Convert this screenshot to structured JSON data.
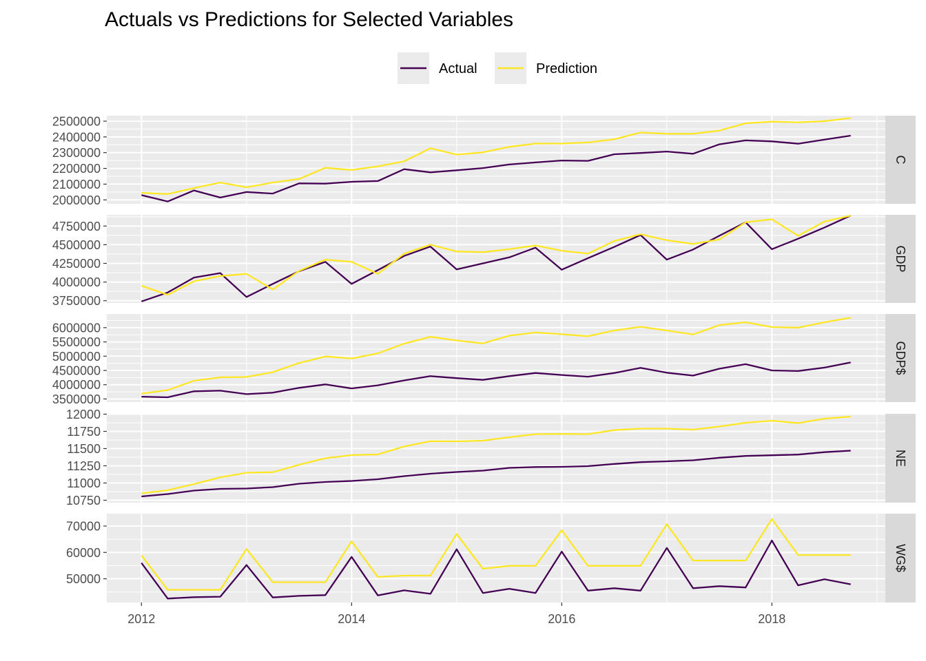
{
  "chart_data": {
    "type": "line",
    "title": "Actuals vs Predictions for Selected Variables",
    "xlabel": "",
    "ylabel": "",
    "x_ticks": [
      "2012",
      "2014",
      "2016",
      "2018"
    ],
    "x_tick_values": [
      2012,
      2014,
      2016,
      2018
    ],
    "x_range": [
      2011.67,
      2019.08
    ],
    "legend": {
      "position": "top",
      "entries": [
        {
          "name": "Actual",
          "color": "#440154"
        },
        {
          "name": "Prediction",
          "color": "#FDE725"
        }
      ]
    },
    "grid": true,
    "x": [
      2012.0,
      2012.25,
      2012.5,
      2012.75,
      2013.0,
      2013.25,
      2013.5,
      2013.75,
      2014.0,
      2014.25,
      2014.5,
      2014.75,
      2015.0,
      2015.25,
      2015.5,
      2015.75,
      2016.0,
      2016.25,
      2016.5,
      2016.75,
      2017.0,
      2017.25,
      2017.5,
      2017.75,
      2018.0,
      2018.25,
      2018.5,
      2018.75
    ],
    "panels": [
      {
        "label": "C",
        "ylim": [
          1975000,
          2535000
        ],
        "y_ticks": [
          "2000000",
          "2100000",
          "2200000",
          "2300000",
          "2400000",
          "2500000"
        ],
        "y_tick_values": [
          2000000,
          2100000,
          2200000,
          2300000,
          2400000,
          2500000
        ],
        "series": [
          {
            "name": "Actual",
            "values": [
              2030000,
              1990000,
              2060000,
              2015000,
              2050000,
              2040000,
              2105000,
              2103000,
              2115000,
              2120000,
              2195000,
              2175000,
              2188000,
              2202000,
              2225000,
              2238000,
              2250000,
              2248000,
              2290000,
              2298000,
              2307000,
              2293000,
              2353000,
              2378000,
              2372000,
              2357000,
              2383000,
              2408000
            ]
          },
          {
            "name": "Prediction",
            "values": [
              2045000,
              2037000,
              2075000,
              2110000,
              2080000,
              2110000,
              2133000,
              2204000,
              2190000,
              2213000,
              2245000,
              2328000,
              2288000,
              2302000,
              2337000,
              2358000,
              2358000,
              2365000,
              2385000,
              2428000,
              2420000,
              2420000,
              2440000,
              2487000,
              2497000,
              2493000,
              2500000,
              2520000
            ]
          }
        ]
      },
      {
        "label": "GDP",
        "ylim": [
          3720000,
          4900000
        ],
        "y_ticks": [
          "3750000",
          "4000000",
          "4250000",
          "4500000",
          "4750000"
        ],
        "y_tick_values": [
          3750000,
          4000000,
          4250000,
          4500000,
          4750000
        ],
        "series": [
          {
            "name": "Actual",
            "values": [
              3740000,
              3860000,
              4060000,
              4120000,
              3800000,
              3975000,
              4145000,
              4270000,
              3975000,
              4160000,
              4350000,
              4475000,
              4170000,
              4250000,
              4330000,
              4460000,
              4165000,
              4320000,
              4470000,
              4630000,
              4300000,
              4435000,
              4620000,
              4800000,
              4440000,
              4580000,
              4730000,
              4890000
            ]
          },
          {
            "name": "Prediction",
            "values": [
              3950000,
              3830000,
              4010000,
              4080000,
              4110000,
              3900000,
              4150000,
              4300000,
              4270000,
              4110000,
              4380000,
              4500000,
              4410000,
              4400000,
              4440000,
              4490000,
              4420000,
              4380000,
              4550000,
              4640000,
              4560000,
              4510000,
              4570000,
              4800000,
              4840000,
              4620000,
              4810000,
              4890000
            ]
          }
        ]
      },
      {
        "label": "GDP$",
        "ylim": [
          3390000,
          6480000
        ],
        "y_ticks": [
          "3500000",
          "4000000",
          "4500000",
          "5000000",
          "5500000",
          "6000000"
        ],
        "y_tick_values": [
          3500000,
          4000000,
          4500000,
          5000000,
          5500000,
          6000000
        ],
        "series": [
          {
            "name": "Actual",
            "values": [
              3580000,
              3560000,
              3770000,
              3790000,
              3670000,
              3720000,
              3890000,
              4010000,
              3870000,
              3980000,
              4150000,
              4300000,
              4230000,
              4170000,
              4300000,
              4410000,
              4340000,
              4280000,
              4410000,
              4590000,
              4420000,
              4320000,
              4560000,
              4720000,
              4500000,
              4480000,
              4600000,
              4780000
            ]
          },
          {
            "name": "Prediction",
            "values": [
              3690000,
              3810000,
              4140000,
              4260000,
              4270000,
              4440000,
              4760000,
              4990000,
              4920000,
              5100000,
              5440000,
              5680000,
              5550000,
              5450000,
              5720000,
              5830000,
              5770000,
              5700000,
              5900000,
              6030000,
              5900000,
              5760000,
              6090000,
              6190000,
              6020000,
              6000000,
              6190000,
              6350000
            ]
          }
        ]
      },
      {
        "label": "NE",
        "ylim": [
          10715,
          12005
        ],
        "y_ticks": [
          "10750",
          "11000",
          "11250",
          "11500",
          "11750",
          "12000"
        ],
        "y_tick_values": [
          10750,
          11000,
          11250,
          11500,
          11750,
          12000
        ],
        "series": [
          {
            "name": "Actual",
            "values": [
              10805,
              10840,
              10890,
              10915,
              10920,
              10940,
              10990,
              11015,
              11030,
              11055,
              11100,
              11135,
              11160,
              11180,
              11220,
              11232,
              11235,
              11245,
              11277,
              11303,
              11315,
              11330,
              11367,
              11393,
              11403,
              11413,
              11448,
              11470
            ]
          },
          {
            "name": "Prediction",
            "values": [
              10850,
              10895,
              10985,
              11082,
              11150,
              11157,
              11265,
              11360,
              11405,
              11415,
              11530,
              11607,
              11605,
              11615,
              11665,
              11710,
              11713,
              11710,
              11768,
              11790,
              11790,
              11775,
              11820,
              11875,
              11905,
              11870,
              11935,
              11965
            ]
          }
        ]
      },
      {
        "label": "WG$",
        "ylim": [
          41000,
          74700
        ],
        "y_ticks": [
          "50000",
          "60000",
          "70000"
        ],
        "y_tick_values": [
          50000,
          60000,
          70000
        ],
        "series": [
          {
            "name": "Actual",
            "values": [
              56000,
              42500,
              43000,
              43200,
              55200,
              42900,
              43500,
              43800,
              58300,
              43700,
              45600,
              44300,
              61200,
              44600,
              46200,
              44600,
              60300,
              45500,
              46400,
              45500,
              61700,
              46400,
              47200,
              46700,
              64500,
              47500,
              49800,
              47900
            ]
          },
          {
            "name": "Prediction",
            "values": [
              58900,
              45800,
              45800,
              45800,
              61300,
              48700,
              48700,
              48700,
              64200,
              50700,
              51200,
              51200,
              67000,
              53800,
              54900,
              54900,
              68400,
              54900,
              54900,
              54900,
              70700,
              56900,
              56900,
              56900,
              72700,
              59000,
              59000,
              59000
            ]
          }
        ]
      }
    ]
  }
}
